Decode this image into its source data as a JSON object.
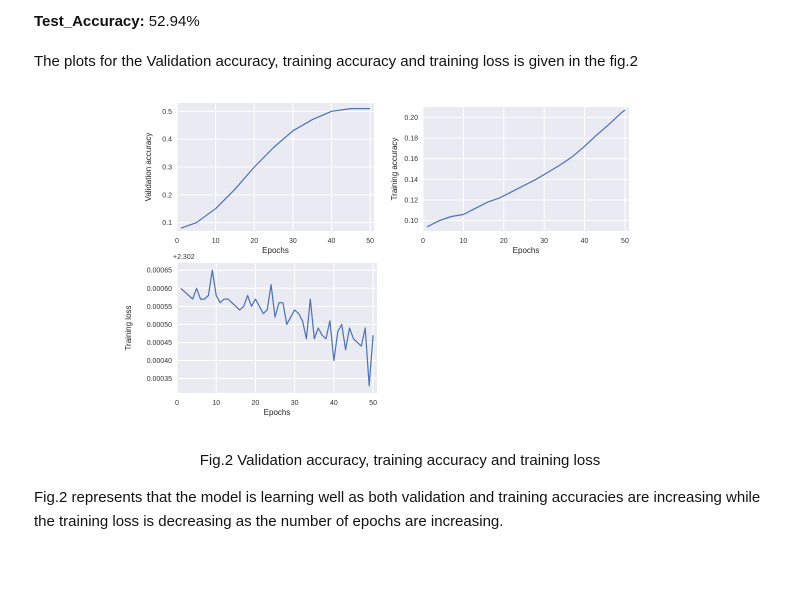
{
  "text": {
    "accuracy_label": "Test_Accuracy:",
    "accuracy_value": " 52.94%",
    "intro": "The plots for the Validation accuracy, training accuracy and training loss is given in the fig.2",
    "caption": "Fig.2 Validation accuracy, training accuracy and training loss",
    "summary": "Fig.2 represents that the model is learning well as both validation and training accuracies are increasing while the training loss is decreasing as the number of epochs are increasing."
  },
  "colors": {
    "line": "#4c72b0",
    "plot_bg": "#eaeaf2",
    "grid": "#ffffff"
  },
  "chart_data": [
    {
      "type": "line",
      "xlabel": "Epochs",
      "ylabel": "Validation accuracy",
      "xlim": [
        0,
        51
      ],
      "ylim": [
        0.07,
        0.53
      ],
      "xticks": [
        0,
        10,
        20,
        30,
        40,
        50
      ],
      "yticks": [
        0.1,
        0.2,
        0.3,
        0.4,
        0.5
      ],
      "ytick_labels": [
        "0.1",
        "0.2",
        "0.3",
        "0.4",
        "0.5"
      ],
      "grid": true,
      "x": [
        1,
        5,
        10,
        15,
        20,
        25,
        30,
        35,
        40,
        45,
        50
      ],
      "y": [
        0.08,
        0.1,
        0.15,
        0.22,
        0.3,
        0.37,
        0.43,
        0.47,
        0.5,
        0.51,
        0.51
      ]
    },
    {
      "type": "line",
      "xlabel": "Epochs",
      "ylabel": "Training accuracy",
      "xlim": [
        0,
        51
      ],
      "ylim": [
        0.09,
        0.21
      ],
      "xticks": [
        0,
        10,
        20,
        30,
        40,
        50
      ],
      "yticks": [
        0.1,
        0.12,
        0.14,
        0.16,
        0.18,
        0.2
      ],
      "ytick_labels": [
        "0.10",
        "0.12",
        "0.14",
        "0.16",
        "0.18",
        "0.20"
      ],
      "grid": true,
      "x": [
        1,
        4,
        7,
        10,
        13,
        16,
        19,
        22,
        25,
        28,
        31,
        34,
        37,
        40,
        43,
        46,
        49,
        50
      ],
      "y": [
        0.094,
        0.1,
        0.104,
        0.106,
        0.112,
        0.118,
        0.122,
        0.128,
        0.134,
        0.14,
        0.147,
        0.154,
        0.162,
        0.172,
        0.183,
        0.193,
        0.204,
        0.207
      ]
    },
    {
      "type": "line",
      "xlabel": "Epochs",
      "ylabel": "Training loss",
      "offset_text": "+2.302",
      "xlim": [
        0,
        51
      ],
      "ylim": [
        0.00031,
        0.00067
      ],
      "xticks": [
        0,
        10,
        20,
        30,
        40,
        50
      ],
      "yticks": [
        0.00035,
        0.0004,
        0.00045,
        0.0005,
        0.00055,
        0.0006,
        0.00065
      ],
      "ytick_labels": [
        "0.00035",
        "0.00040",
        "0.00045",
        "0.00050",
        "0.00055",
        "0.00060",
        "0.00065"
      ],
      "grid": true,
      "x": [
        1,
        2,
        3,
        4,
        5,
        6,
        7,
        8,
        9,
        10,
        11,
        12,
        13,
        14,
        15,
        16,
        17,
        18,
        19,
        20,
        21,
        22,
        23,
        24,
        25,
        26,
        27,
        28,
        29,
        30,
        31,
        32,
        33,
        34,
        35,
        36,
        37,
        38,
        39,
        40,
        41,
        42,
        43,
        44,
        45,
        46,
        47,
        48,
        49,
        50
      ],
      "y": [
        0.0006,
        0.00059,
        0.00058,
        0.00057,
        0.0006,
        0.00057,
        0.00057,
        0.00058,
        0.00065,
        0.00058,
        0.00056,
        0.00057,
        0.00057,
        0.00056,
        0.00055,
        0.00054,
        0.00055,
        0.00058,
        0.00055,
        0.00057,
        0.00055,
        0.00053,
        0.00054,
        0.00061,
        0.00052,
        0.00056,
        0.00056,
        0.0005,
        0.00052,
        0.00054,
        0.00053,
        0.00051,
        0.00046,
        0.00057,
        0.00046,
        0.00049,
        0.00047,
        0.00046,
        0.00051,
        0.0004,
        0.00048,
        0.0005,
        0.00043,
        0.00049,
        0.00046,
        0.00045,
        0.00044,
        0.00049,
        0.00033,
        0.00047
      ]
    }
  ]
}
